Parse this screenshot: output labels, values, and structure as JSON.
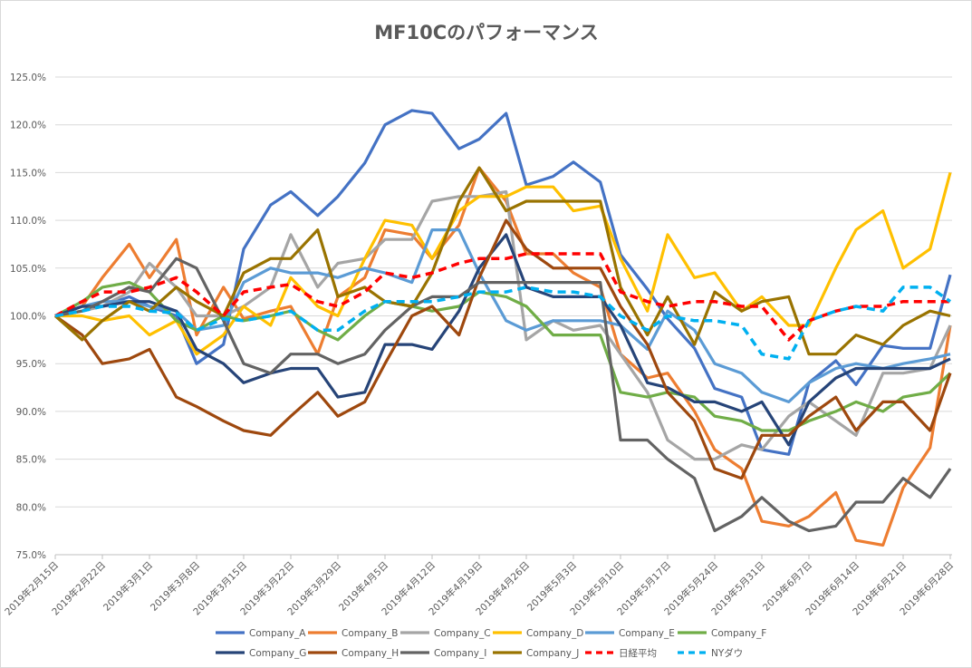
{
  "chart_data": {
    "type": "line",
    "title": "MF10Cのパフォーマンス",
    "xlabel": "",
    "ylabel": "",
    "ylim": [
      75,
      125
    ],
    "y_ticks": [
      "75.0%",
      "80.0%",
      "85.0%",
      "90.0%",
      "95.0%",
      "100.0%",
      "105.0%",
      "110.0%",
      "115.0%",
      "120.0%",
      "125.0%"
    ],
    "x_ticks": [
      "2019年2月15日",
      "2019年2月22日",
      "2019年3月1日",
      "2019年3月8日",
      "2019年3月15日",
      "2019年3月22日",
      "2019年3月29日",
      "2019年4月5日",
      "2019年4月12日",
      "2019年4月19日",
      "2019年4月26日",
      "2019年5月3日",
      "2019年5月10日",
      "2019年5月17日",
      "2019年5月24日",
      "2019年5月31日",
      "2019年6月7日",
      "2019年6月14日",
      "2019年6月21日",
      "2019年6月28日"
    ],
    "grid": true,
    "legend_position": "bottom",
    "x": [
      "2019-02-15",
      "2019-02-19",
      "2019-02-22",
      "2019-02-26",
      "2019-03-01",
      "2019-03-05",
      "2019-03-08",
      "2019-03-12",
      "2019-03-15",
      "2019-03-19",
      "2019-03-22",
      "2019-03-26",
      "2019-03-29",
      "2019-04-02",
      "2019-04-05",
      "2019-04-09",
      "2019-04-12",
      "2019-04-16",
      "2019-04-19",
      "2019-04-23",
      "2019-04-26",
      "2019-04-30",
      "2019-05-03",
      "2019-05-07",
      "2019-05-10",
      "2019-05-14",
      "2019-05-17",
      "2019-05-21",
      "2019-05-24",
      "2019-05-28",
      "2019-05-31",
      "2019-06-04",
      "2019-06-07",
      "2019-06-11",
      "2019-06-14",
      "2019-06-18",
      "2019-06-21",
      "2019-06-25",
      "2019-06-28"
    ],
    "series": [
      {
        "name": "Company_A",
        "color": "#4472C4",
        "dash": false,
        "values": [
          100,
          101,
          101,
          102,
          101,
          100,
          95,
          97,
          107,
          111.6,
          113,
          110.5,
          112.5,
          116,
          120,
          121.5,
          121.2,
          117.5,
          118.5,
          121.2,
          113.7,
          114.6,
          116.1,
          114,
          106.4,
          102.8,
          99.7,
          96.6,
          92.4,
          91.5,
          86,
          85.5,
          93,
          95.3,
          92.8,
          96.9,
          96.6,
          96.6,
          104.3
        ]
      },
      {
        "name": "Company_B",
        "color": "#ED7D31",
        "dash": false,
        "values": [
          100,
          101,
          104,
          107.5,
          104,
          108,
          98,
          103,
          99.7,
          100.5,
          101,
          96,
          102,
          104,
          109,
          108.5,
          106,
          109.5,
          115.5,
          112,
          106.5,
          106.5,
          104.5,
          103,
          96,
          93.5,
          94,
          90,
          86,
          84,
          78.5,
          78,
          79,
          81.5,
          76.5,
          76,
          82,
          86.2,
          99
        ]
      },
      {
        "name": "Company_C",
        "color": "#A5A5A5",
        "dash": false,
        "values": [
          100,
          100.5,
          101,
          102.5,
          105.5,
          103,
          100,
          100,
          101,
          103,
          108.5,
          103,
          105.5,
          106,
          108,
          108,
          112,
          112.5,
          112.5,
          113,
          97.5,
          99.5,
          98.5,
          99,
          96,
          92,
          87,
          85,
          85,
          86.5,
          86,
          89.5,
          91,
          89,
          87.5,
          94,
          94,
          94.5,
          99
        ]
      },
      {
        "name": "Company_D",
        "color": "#FFC000",
        "dash": false,
        "values": [
          100,
          100,
          99.5,
          100,
          98,
          99.5,
          96,
          98,
          101,
          99,
          104,
          101,
          100,
          106,
          110,
          109.5,
          106,
          111,
          112.5,
          112.5,
          113.5,
          113.5,
          111,
          111.5,
          106,
          100.5,
          108.5,
          104,
          104.5,
          100.5,
          102,
          99,
          99,
          105,
          109,
          111,
          105,
          107,
          115
        ]
      },
      {
        "name": "Company_E",
        "color": "#5B9BD5",
        "dash": false,
        "values": [
          100,
          101,
          101.5,
          101.5,
          101,
          100.5,
          98.5,
          99,
          103.5,
          105,
          104.5,
          104.5,
          104,
          105,
          104.5,
          103.5,
          109,
          109,
          104.5,
          99.5,
          98.5,
          99.5,
          99.5,
          99.5,
          99,
          96.5,
          100.5,
          98.5,
          95,
          94,
          92,
          91,
          93,
          94.5,
          95,
          94.5,
          95,
          95.5,
          96
        ]
      },
      {
        "name": "Company_F",
        "color": "#70AD47",
        "dash": false,
        "values": [
          100,
          101.5,
          103,
          103.5,
          102.5,
          99.5,
          98.5,
          100,
          99.5,
          100,
          100.5,
          98.5,
          97.5,
          100,
          101.5,
          101,
          100.5,
          101,
          102.5,
          102,
          101,
          98,
          98,
          98,
          92,
          91.5,
          92,
          91.5,
          89.5,
          89,
          88,
          88,
          89,
          90,
          91,
          90,
          91.5,
          92,
          94
        ]
      },
      {
        "name": "Company_G",
        "color": "#264478",
        "dash": false,
        "values": [
          100,
          101,
          101,
          101.5,
          101.5,
          100.5,
          96.5,
          95,
          93,
          94,
          94.5,
          94.5,
          91.5,
          92,
          97,
          97,
          96.5,
          100.5,
          105,
          108.5,
          103,
          102,
          102,
          102,
          99,
          93,
          92.5,
          91,
          91,
          90,
          91,
          86.5,
          91,
          93.5,
          94.5,
          94.5,
          94.5,
          94.5,
          95.5
        ]
      },
      {
        "name": "Company_H",
        "color": "#9E480E",
        "dash": false,
        "values": [
          100,
          98,
          95,
          95.5,
          96.5,
          91.5,
          90.5,
          89,
          88,
          87.5,
          89.5,
          92,
          89.5,
          91,
          95,
          100,
          101,
          98,
          104,
          110,
          107,
          105,
          105,
          105,
          101,
          97,
          92,
          89,
          84,
          83,
          87.5,
          87.5,
          89.5,
          91.5,
          88,
          91,
          91,
          88,
          94
        ]
      },
      {
        "name": "Company_I",
        "color": "#636363",
        "dash": false,
        "values": [
          100,
          100.5,
          101.5,
          103,
          102.5,
          106,
          105,
          99.5,
          95,
          94,
          96,
          96,
          95,
          96,
          98.5,
          101,
          102,
          102,
          103.5,
          103.5,
          103.5,
          103.5,
          103.5,
          103.5,
          87,
          87,
          85,
          83,
          77.5,
          79,
          81,
          78.5,
          77.5,
          78,
          80.5,
          80.5,
          83,
          81,
          84
        ]
      },
      {
        "name": "Company_J",
        "color": "#997300",
        "dash": false,
        "values": [
          100,
          97.5,
          99.5,
          101.5,
          100.5,
          103,
          101.5,
          100,
          104.5,
          106,
          106,
          109,
          102,
          103,
          101.5,
          101,
          104.5,
          112,
          115.5,
          111,
          112,
          112,
          112,
          112,
          103,
          98,
          102,
          97,
          102.5,
          100.5,
          101.5,
          102,
          96,
          96,
          98,
          97,
          99,
          100.5,
          100
        ]
      },
      {
        "name": "日経平均",
        "color": "#FF0000",
        "dash": true,
        "values": [
          100,
          101.5,
          102.5,
          102.5,
          103,
          104,
          102.5,
          100,
          102.5,
          103,
          103.3,
          101.5,
          101,
          102.5,
          104.5,
          104,
          104.5,
          105.5,
          106,
          106,
          106.5,
          106.5,
          106.5,
          106.5,
          102.5,
          101.5,
          101,
          101.5,
          101.5,
          101,
          101,
          97.5,
          99.5,
          100.5,
          101,
          101,
          101.5,
          101.5,
          101.5
        ]
      },
      {
        "name": "NYダウ",
        "color": "#00B0F0",
        "dash": true,
        "values": [
          100,
          100.5,
          101,
          101,
          100.5,
          100.3,
          98.5,
          99.7,
          99.5,
          100,
          100.5,
          98.5,
          98.5,
          100.5,
          101.5,
          101.5,
          101.5,
          102,
          102.5,
          102.5,
          103,
          102.5,
          102.5,
          102,
          100,
          98.5,
          100,
          99.5,
          99.5,
          99,
          96,
          95.5,
          99.5,
          100.5,
          101,
          100.5,
          103,
          103,
          101.5
        ]
      }
    ]
  }
}
